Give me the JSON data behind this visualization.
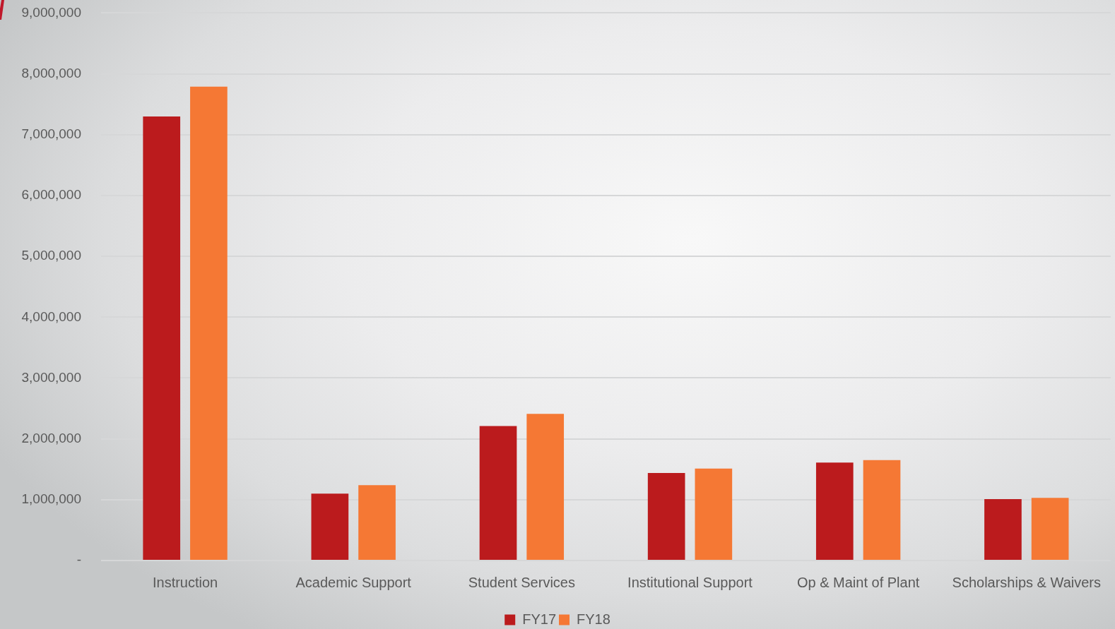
{
  "chart_data": {
    "type": "bar",
    "categories": [
      "Instruction",
      "Academic Support",
      "Student Services",
      "Institutional Support",
      "Op & Maint of Plant",
      "Scholarships & Waivers"
    ],
    "series": [
      {
        "name": "FY17",
        "color": "#bb1b1d",
        "values": [
          7300000,
          1100000,
          2210000,
          1440000,
          1610000,
          1010000
        ]
      },
      {
        "name": "FY18",
        "color": "#f57834",
        "values": [
          7790000,
          1240000,
          2410000,
          1510000,
          1650000,
          1030000
        ]
      }
    ],
    "ylim": [
      0,
      9000000
    ],
    "yticks": [
      {
        "value": 0,
        "label": "-"
      },
      {
        "value": 1000000,
        "label": "1,000,000"
      },
      {
        "value": 2000000,
        "label": "2,000,000"
      },
      {
        "value": 3000000,
        "label": "3,000,000"
      },
      {
        "value": 4000000,
        "label": "4,000,000"
      },
      {
        "value": 5000000,
        "label": "5,000,000"
      },
      {
        "value": 6000000,
        "label": "6,000,000"
      },
      {
        "value": 7000000,
        "label": "7,000,000"
      },
      {
        "value": 8000000,
        "label": "8,000,000"
      },
      {
        "value": 9000000,
        "label": "9,000,000"
      }
    ],
    "grid": "y",
    "legend": "bottom"
  }
}
